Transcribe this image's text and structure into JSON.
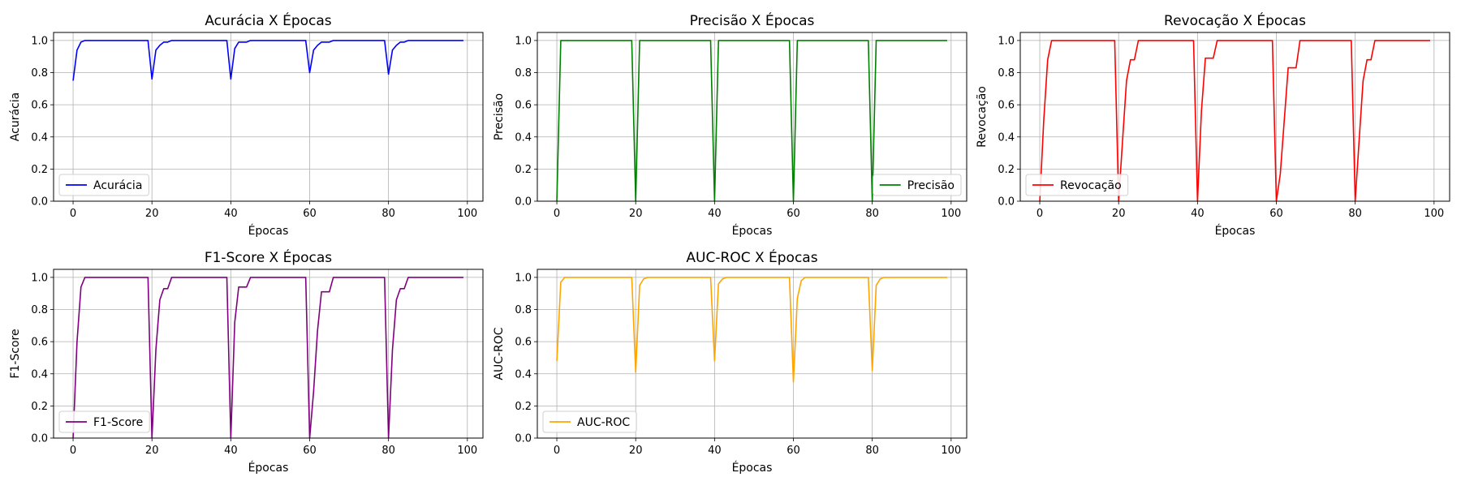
{
  "chart_data": [
    {
      "type": "line",
      "title": "Acurácia X Épocas",
      "xlabel": "Épocas",
      "ylabel": "Acurácia",
      "xlim": [
        -4.95,
        103.95
      ],
      "ylim": [
        0,
        1.05
      ],
      "xticks": [
        "0",
        "20",
        "40",
        "60",
        "80",
        "100"
      ],
      "yticks": [
        "0.0",
        "0.2",
        "0.4",
        "0.6",
        "0.8",
        "1.0"
      ],
      "grid": true,
      "legend_position": "lower left",
      "series": [
        {
          "name": "Acurácia",
          "color": "#0000ff",
          "x": [
            0,
            1,
            2,
            3,
            4,
            19,
            20,
            21,
            22,
            23,
            24,
            25,
            39,
            40,
            41,
            42,
            43,
            44,
            45,
            59,
            60,
            61,
            62,
            63,
            64,
            65,
            66,
            79,
            80,
            81,
            82,
            83,
            84,
            85,
            99
          ],
          "y": [
            0.75,
            0.94,
            0.99,
            1.0,
            1.0,
            1.0,
            0.76,
            0.94,
            0.97,
            0.99,
            0.99,
            1.0,
            1.0,
            0.76,
            0.95,
            0.99,
            0.99,
            0.99,
            1.0,
            1.0,
            0.8,
            0.94,
            0.97,
            0.99,
            0.99,
            0.99,
            1.0,
            1.0,
            0.79,
            0.94,
            0.97,
            0.99,
            0.99,
            1.0,
            1.0
          ]
        }
      ]
    },
    {
      "type": "line",
      "title": "Precisão X Épocas",
      "xlabel": "Épocas",
      "ylabel": "Precisão",
      "xlim": [
        -4.95,
        103.95
      ],
      "ylim": [
        0,
        1.05
      ],
      "xticks": [
        "0",
        "20",
        "40",
        "60",
        "80",
        "100"
      ],
      "yticks": [
        "0.0",
        "0.2",
        "0.4",
        "0.6",
        "0.8",
        "1.0"
      ],
      "grid": true,
      "legend_position": "lower right",
      "series": [
        {
          "name": "Precisão",
          "color": "#008000",
          "x": [
            0,
            1,
            19,
            20,
            21,
            39,
            40,
            41,
            59,
            60,
            61,
            79,
            80,
            81,
            99
          ],
          "y": [
            0.0,
            1.0,
            1.0,
            0.0,
            1.0,
            1.0,
            0.0,
            1.0,
            1.0,
            0.0,
            1.0,
            1.0,
            0.0,
            1.0,
            1.0
          ]
        }
      ]
    },
    {
      "type": "line",
      "title": "Revocação X Épocas",
      "xlabel": "Épocas",
      "ylabel": "Revocação",
      "xlim": [
        -4.95,
        103.95
      ],
      "ylim": [
        0,
        1.05
      ],
      "xticks": [
        "0",
        "20",
        "40",
        "60",
        "80",
        "100"
      ],
      "yticks": [
        "0.0",
        "0.2",
        "0.4",
        "0.6",
        "0.8",
        "1.0"
      ],
      "grid": true,
      "legend_position": "lower left",
      "series": [
        {
          "name": "Revocação",
          "color": "#ff0000",
          "x": [
            0,
            1,
            2,
            3,
            19,
            20,
            21,
            22,
            23,
            24,
            25,
            39,
            40,
            41,
            42,
            43,
            44,
            45,
            59,
            60,
            61,
            62,
            63,
            64,
            65,
            66,
            79,
            80,
            81,
            82,
            83,
            84,
            85,
            99
          ],
          "y": [
            0.0,
            0.5,
            0.88,
            1.0,
            1.0,
            0.0,
            0.38,
            0.75,
            0.88,
            0.88,
            1.0,
            1.0,
            0.0,
            0.56,
            0.89,
            0.89,
            0.89,
            1.0,
            1.0,
            0.0,
            0.17,
            0.5,
            0.83,
            0.83,
            0.83,
            1.0,
            1.0,
            0.0,
            0.38,
            0.75,
            0.88,
            0.88,
            1.0,
            1.0
          ]
        }
      ]
    },
    {
      "type": "line",
      "title": "F1-Score X Épocas",
      "xlabel": "Épocas",
      "ylabel": "F1-Score",
      "xlim": [
        -4.95,
        103.95
      ],
      "ylim": [
        0,
        1.05
      ],
      "xticks": [
        "0",
        "20",
        "40",
        "60",
        "80",
        "100"
      ],
      "yticks": [
        "0.0",
        "0.2",
        "0.4",
        "0.6",
        "0.8",
        "1.0"
      ],
      "grid": true,
      "legend_position": "lower left",
      "series": [
        {
          "name": "F1-Score",
          "color": "#800080",
          "x": [
            0,
            1,
            2,
            3,
            19,
            20,
            21,
            22,
            23,
            24,
            25,
            39,
            40,
            41,
            42,
            43,
            44,
            45,
            59,
            60,
            61,
            62,
            63,
            64,
            65,
            66,
            79,
            80,
            81,
            82,
            83,
            84,
            85,
            99
          ],
          "y": [
            0.0,
            0.6,
            0.94,
            1.0,
            1.0,
            0.0,
            0.55,
            0.86,
            0.93,
            0.93,
            1.0,
            1.0,
            0.0,
            0.72,
            0.94,
            0.94,
            0.94,
            1.0,
            1.0,
            0.0,
            0.29,
            0.67,
            0.91,
            0.91,
            0.91,
            1.0,
            1.0,
            0.0,
            0.55,
            0.86,
            0.93,
            0.93,
            1.0,
            1.0
          ]
        }
      ]
    },
    {
      "type": "line",
      "title": "AUC-ROC X Épocas",
      "xlabel": "Épocas",
      "ylabel": "AUC-ROC",
      "xlim": [
        -4.95,
        103.95
      ],
      "ylim": [
        0,
        1.05
      ],
      "xticks": [
        "0",
        "20",
        "40",
        "60",
        "80",
        "100"
      ],
      "yticks": [
        "0.0",
        "0.2",
        "0.4",
        "0.6",
        "0.8",
        "1.0"
      ],
      "grid": true,
      "legend_position": "lower left",
      "series": [
        {
          "name": "AUC-ROC",
          "color": "#ffa500",
          "x": [
            0,
            1,
            2,
            3,
            19,
            20,
            21,
            22,
            23,
            39,
            40,
            41,
            42,
            43,
            59,
            60,
            61,
            62,
            63,
            79,
            80,
            81,
            82,
            83,
            99
          ],
          "y": [
            0.48,
            0.97,
            1.0,
            1.0,
            1.0,
            0.41,
            0.95,
            0.99,
            1.0,
            1.0,
            0.48,
            0.96,
            0.99,
            1.0,
            1.0,
            0.35,
            0.87,
            0.98,
            1.0,
            1.0,
            0.42,
            0.95,
            0.99,
            1.0,
            1.0
          ]
        }
      ]
    }
  ]
}
